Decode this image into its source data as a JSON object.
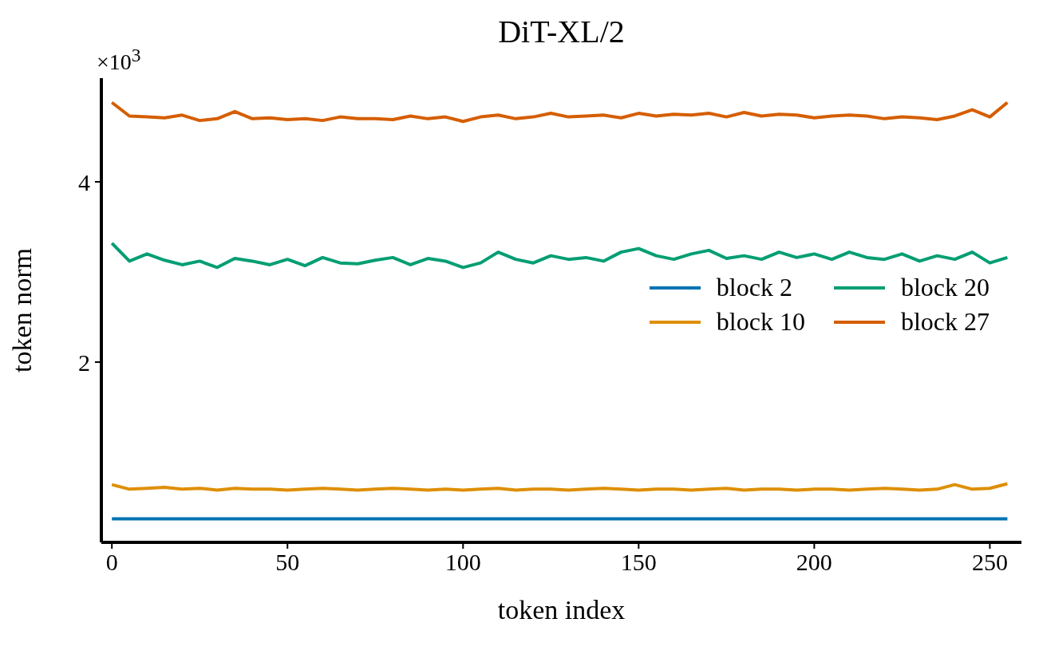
{
  "chart_data": {
    "type": "line",
    "title": "DiT-XL/2",
    "xlabel": "token index",
    "ylabel": "token norm",
    "annotations": [
      "×10$^{3}$"
    ],
    "x": [
      0,
      5,
      10,
      15,
      20,
      25,
      30,
      35,
      40,
      45,
      50,
      55,
      60,
      65,
      70,
      75,
      80,
      85,
      90,
      95,
      100,
      105,
      110,
      115,
      120,
      125,
      130,
      135,
      140,
      145,
      150,
      155,
      160,
      165,
      170,
      175,
      180,
      185,
      190,
      195,
      200,
      205,
      210,
      215,
      220,
      225,
      230,
      235,
      240,
      245,
      250,
      255
    ],
    "series": [
      {
        "name": "block 2",
        "color": "#0173b2",
        "values": [
          0.26,
          0.26,
          0.26,
          0.26,
          0.26,
          0.26,
          0.26,
          0.26,
          0.26,
          0.26,
          0.26,
          0.26,
          0.26,
          0.26,
          0.26,
          0.26,
          0.26,
          0.26,
          0.26,
          0.26,
          0.26,
          0.26,
          0.26,
          0.26,
          0.26,
          0.26,
          0.26,
          0.26,
          0.26,
          0.26,
          0.26,
          0.26,
          0.26,
          0.26,
          0.26,
          0.26,
          0.26,
          0.26,
          0.26,
          0.26,
          0.26,
          0.26,
          0.26,
          0.26,
          0.26,
          0.26,
          0.26,
          0.26,
          0.26,
          0.26,
          0.26,
          0.26
        ]
      },
      {
        "name": "block 10",
        "color": "#de8f05",
        "values": [
          0.64,
          0.59,
          0.6,
          0.61,
          0.59,
          0.6,
          0.58,
          0.6,
          0.59,
          0.59,
          0.58,
          0.59,
          0.6,
          0.59,
          0.58,
          0.59,
          0.6,
          0.59,
          0.58,
          0.59,
          0.58,
          0.59,
          0.6,
          0.58,
          0.59,
          0.59,
          0.58,
          0.59,
          0.6,
          0.59,
          0.58,
          0.59,
          0.59,
          0.58,
          0.59,
          0.6,
          0.58,
          0.59,
          0.59,
          0.58,
          0.59,
          0.59,
          0.58,
          0.59,
          0.6,
          0.59,
          0.58,
          0.59,
          0.64,
          0.59,
          0.6,
          0.65
        ]
      },
      {
        "name": "block 20",
        "color": "#029e73",
        "values": [
          3.32,
          3.12,
          3.2,
          3.13,
          3.08,
          3.12,
          3.05,
          3.15,
          3.12,
          3.08,
          3.14,
          3.07,
          3.16,
          3.1,
          3.09,
          3.13,
          3.16,
          3.08,
          3.15,
          3.12,
          3.05,
          3.1,
          3.22,
          3.14,
          3.1,
          3.18,
          3.14,
          3.16,
          3.12,
          3.22,
          3.26,
          3.18,
          3.14,
          3.2,
          3.24,
          3.15,
          3.18,
          3.14,
          3.22,
          3.16,
          3.2,
          3.14,
          3.22,
          3.16,
          3.14,
          3.2,
          3.12,
          3.18,
          3.14,
          3.22,
          3.1,
          3.16
        ]
      },
      {
        "name": "block 27",
        "color": "#d55e00",
        "values": [
          4.88,
          4.73,
          4.72,
          4.71,
          4.74,
          4.68,
          4.7,
          4.78,
          4.7,
          4.71,
          4.69,
          4.7,
          4.68,
          4.72,
          4.7,
          4.7,
          4.69,
          4.73,
          4.7,
          4.72,
          4.67,
          4.72,
          4.74,
          4.7,
          4.72,
          4.76,
          4.72,
          4.73,
          4.74,
          4.71,
          4.76,
          4.73,
          4.75,
          4.74,
          4.76,
          4.72,
          4.77,
          4.73,
          4.75,
          4.74,
          4.71,
          4.73,
          4.74,
          4.73,
          4.7,
          4.72,
          4.71,
          4.69,
          4.73,
          4.8,
          4.72,
          4.88
        ]
      }
    ],
    "xlim": [
      -3,
      259
    ],
    "xticks": [
      0,
      50,
      100,
      150,
      200,
      250
    ],
    "ylim": [
      0,
      5.15
    ],
    "yticks": [
      2,
      4
    ],
    "legend": "center right",
    "line_style": "solid"
  }
}
